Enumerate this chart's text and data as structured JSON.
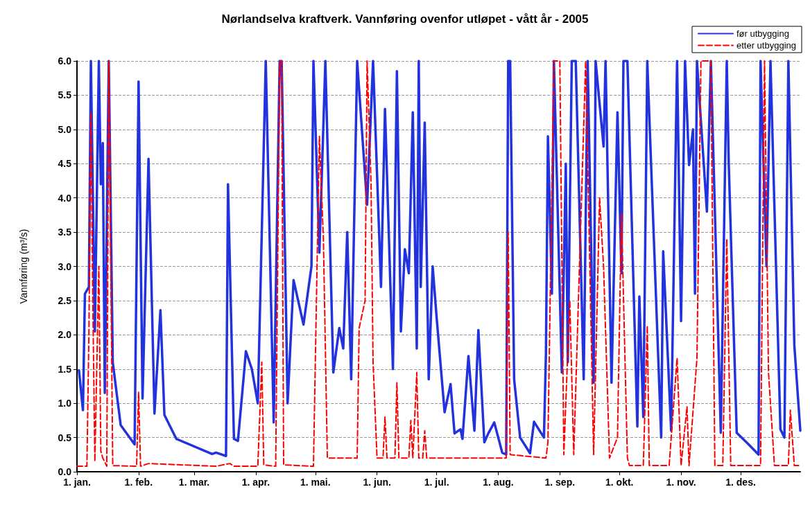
{
  "chart_data": {
    "type": "line",
    "title": "Nørlandselva kraftverk. Vannføring ovenfor utløpet - vått år - 2005",
    "ylabel": "Vannføring (m³/s)",
    "xlim": [
      "--01-01",
      "--12-31"
    ],
    "xticks": [
      {
        "value": "--01-01",
        "label": "1. jan."
      },
      {
        "value": "--02-01",
        "label": "1. feb."
      },
      {
        "value": "--03-01",
        "label": "1. mar."
      },
      {
        "value": "--04-01",
        "label": "1. apr."
      },
      {
        "value": "--05-01",
        "label": "1. mai."
      },
      {
        "value": "--06-01",
        "label": "1. jun."
      },
      {
        "value": "--07-01",
        "label": "1. jul."
      },
      {
        "value": "--08-01",
        "label": "1. aug."
      },
      {
        "value": "--09-01",
        "label": "1. sep."
      },
      {
        "value": "--10-01",
        "label": "1. okt."
      },
      {
        "value": "--11-01",
        "label": "1. nov."
      },
      {
        "value": "--12-01",
        "label": "1. des."
      }
    ],
    "ylim": [
      0,
      6
    ],
    "yticks": [
      {
        "value": 0,
        "label": "0.0"
      },
      0.5,
      {
        "value": 1,
        "label": "1.0"
      },
      1.5,
      {
        "value": 2,
        "label": "2.0"
      },
      2.5,
      {
        "value": 3,
        "label": "3.0"
      },
      3.5,
      {
        "value": 4,
        "label": "4.0"
      },
      4.5,
      {
        "value": 5,
        "label": "5.0"
      },
      5.5,
      {
        "value": 6,
        "label": "6.0"
      }
    ],
    "grid": "y",
    "legend": "top right",
    "series": [
      {
        "name": "før utbygging",
        "color": "#2233dd",
        "line_style": "solid",
        "x": [
          "--01-02",
          "--01-04",
          "--01-05",
          "--01-07",
          "--01-08",
          "--01-10",
          "--01-12",
          "--01-13",
          "--01-14",
          "--01-15",
          "--01-17",
          "--01-19",
          "--01-23",
          "--01-30",
          "--02-01",
          "--02-03",
          "--02-06",
          "--02-09",
          "--02-12",
          "--02-14",
          "--02-20",
          "--03-10",
          "--03-12",
          "--03-17",
          "--03-18",
          "--03-21",
          "--03-23",
          "--03-26",
          "--03-27",
          "--03-30",
          "--04-02",
          "--04-06",
          "--04-10",
          "--04-13",
          "--04-14",
          "--04-17",
          "--04-20",
          "--04-25",
          "--04-29",
          "--04-30",
          "--05-03",
          "--05-06",
          "--05-10",
          "--05-13",
          "--05-15",
          "--05-17",
          "--05-19",
          "--05-22",
          "--05-27",
          "--05-30",
          "--06-03",
          "--06-05",
          "--06-09",
          "--06-11",
          "--06-13",
          "--06-15",
          "--06-17",
          "--06-19",
          "--06-21",
          "--06-22",
          "--06-23",
          "--06-25",
          "--06-27",
          "--06-29",
          "--07-01",
          "--07-05",
          "--07-08",
          "--07-10",
          "--07-13",
          "--07-14",
          "--07-17",
          "--07-20",
          "--07-22",
          "--07-25",
          "--07-27",
          "--07-30",
          "--08-03",
          "--08-05",
          "--08-06",
          "--08-07",
          "--08-09",
          "--08-12",
          "--08-17",
          "--08-19",
          "--08-24",
          "--08-25",
          "--08-26",
          "--08-28",
          "--08-29",
          "--09-02",
          "--09-04",
          "--09-05",
          "--09-07",
          "--09-09",
          "--09-13",
          "--09-15",
          "--09-18",
          "--09-19",
          "--09-23",
          "--09-24",
          "--09-27",
          "--09-30",
          "--10-02",
          "--10-03",
          "--10-05",
          "--10-10",
          "--10-11",
          "--10-13",
          "--10-15",
          "--10-22",
          "--10-23",
          "--10-27",
          "--10-30",
          "--11-01",
          "--11-03",
          "--11-05",
          "--11-07",
          "--11-08",
          "--11-09",
          "--11-14",
          "--11-16",
          "--11-21",
          "--11-24",
          "--11-25",
          "--11-29",
          "--12-05",
          "--12-10",
          "--12-11",
          "--12-14",
          "--12-16",
          "--12-21",
          "--12-23",
          "--12-25",
          "--12-28",
          "--12-31"
        ],
        "values": [
          1.48,
          0.9,
          2.6,
          2.7,
          6.0,
          2.05,
          6.0,
          4.2,
          4.8,
          1.15,
          6.0,
          1.6,
          0.68,
          0.4,
          5.7,
          1.07,
          4.57,
          0.85,
          2.36,
          0.83,
          0.48,
          0.26,
          0.28,
          0.23,
          4.2,
          0.48,
          0.45,
          1.42,
          1.76,
          1.5,
          1.0,
          6.0,
          0.72,
          6.0,
          6.0,
          1.0,
          2.8,
          2.15,
          3.0,
          6.0,
          3.2,
          6.0,
          1.45,
          2.1,
          1.8,
          3.5,
          1.35,
          6.0,
          3.9,
          6.0,
          2.7,
          5.3,
          1.5,
          5.85,
          2.05,
          3.25,
          2.9,
          5.25,
          1.8,
          6.0,
          2.7,
          5.1,
          1.35,
          3.0,
          2.25,
          0.87,
          1.28,
          0.56,
          0.62,
          0.48,
          1.69,
          0.6,
          2.07,
          0.43,
          0.56,
          0.72,
          0.28,
          0.25,
          6.0,
          6.0,
          1.35,
          0.5,
          0.27,
          0.73,
          0.5,
          1.72,
          4.9,
          2.6,
          6.0,
          1.45,
          4.5,
          1.6,
          6.0,
          6.0,
          1.35,
          6.0,
          1.3,
          6.0,
          4.75,
          6.0,
          1.3,
          5.25,
          2.9,
          6.0,
          6.0,
          0.66,
          2.56,
          0.8,
          6.0,
          0.5,
          3.22,
          0.6,
          6.0,
          2.2,
          6.0,
          4.48,
          5.0,
          2.6,
          6.0,
          3.8,
          6.0,
          0.57,
          6.0,
          4.5,
          0.57,
          0.4,
          0.25,
          6.0,
          3.0,
          6.0,
          0.62,
          0.5,
          6.0,
          1.85,
          0.6
        ]
      },
      {
        "name": "etter utbygging",
        "color": "#ff0000",
        "line_style": "dashed",
        "x": [
          "--01-01",
          "--01-06",
          "--01-07",
          "--01-08",
          "--01-09",
          "--01-10",
          "--01-12",
          "--01-13",
          "--01-14",
          "--01-16",
          "--01-17",
          "--01-19",
          "--01-31",
          "--02-01",
          "--02-02",
          "--02-06",
          "--03-12",
          "--03-19",
          "--03-21",
          "--04-02",
          "--04-04",
          "--04-05",
          "--04-11",
          "--04-13",
          "--04-14",
          "--04-15",
          "--04-30",
          "--05-03",
          "--05-05",
          "--05-07",
          "--05-22",
          "--05-23",
          "--05-26",
          "--05-27",
          "--05-29",
          "--05-30",
          "--06-01",
          "--06-04",
          "--06-05",
          "--06-06",
          "--06-10",
          "--06-11",
          "--06-12",
          "--06-17",
          "--06-18",
          "--06-19",
          "--06-21",
          "--06-22",
          "--06-24",
          "--06-25",
          "--06-26",
          "--08-05",
          "--08-06",
          "--08-07",
          "--08-25",
          "--08-26",
          "--08-29",
          "--09-01",
          "--09-03",
          "--09-06",
          "--09-08",
          "--09-14",
          "--09-18",
          "--09-21",
          "--09-23",
          "--09-26",
          "--09-30",
          "--10-02",
          "--10-05",
          "--10-06",
          "--10-13",
          "--10-15",
          "--10-16",
          "--10-26",
          "--10-30",
          "--11-01",
          "--11-04",
          "--11-05",
          "--11-09",
          "--11-11",
          "--11-16",
          "--11-18",
          "--11-22",
          "--11-24",
          "--11-26",
          "--12-11",
          "--12-13",
          "--12-15",
          "--12-18",
          "--12-25",
          "--12-26",
          "--12-28",
          "--12-31"
        ],
        "values": [
          0.08,
          0.08,
          2.0,
          5.25,
          2.4,
          0.15,
          3.0,
          0.3,
          0.2,
          0.08,
          6.0,
          0.09,
          0.08,
          1.16,
          0.08,
          0.12,
          0.08,
          0.12,
          0.08,
          0.08,
          1.6,
          0.1,
          0.08,
          6.0,
          6.0,
          0.1,
          0.08,
          4.9,
          3.4,
          0.2,
          0.2,
          2.1,
          2.5,
          6.0,
          4.2,
          1.6,
          0.2,
          0.2,
          0.8,
          0.2,
          0.2,
          1.3,
          0.2,
          0.2,
          0.75,
          0.2,
          1.45,
          0.2,
          0.2,
          0.6,
          0.2,
          0.2,
          3.5,
          0.25,
          0.2,
          0.43,
          6.0,
          6.0,
          0.25,
          2.5,
          0.25,
          6.0,
          0.25,
          4.0,
          3.0,
          0.2,
          0.5,
          3.77,
          0.2,
          0.09,
          0.09,
          2.13,
          0.09,
          0.09,
          1.66,
          0.09,
          0.95,
          0.09,
          1.66,
          6.0,
          6.0,
          0.09,
          0.09,
          3.4,
          0.09,
          0.09,
          6.0,
          1.45,
          0.09,
          0.09,
          0.9,
          0.09,
          0.09
        ]
      }
    ]
  }
}
